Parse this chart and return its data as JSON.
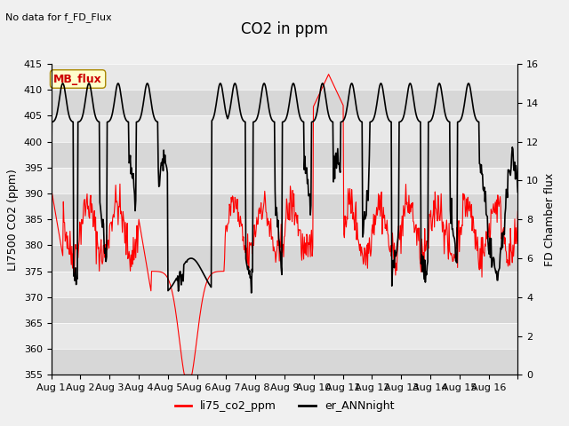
{
  "title": "CO2 in ppm",
  "top_left_text": "No data for f_FD_Flux",
  "ylabel_left": "LI7500 CO2 (ppm)",
  "ylabel_right": "FD Chamber flux",
  "ylim_left": [
    355,
    415
  ],
  "ylim_right": [
    0,
    16
  ],
  "yticks_left": [
    355,
    360,
    365,
    370,
    375,
    380,
    385,
    390,
    395,
    400,
    405,
    410,
    415
  ],
  "yticks_right": [
    0,
    2,
    4,
    6,
    8,
    10,
    12,
    14,
    16
  ],
  "xtick_labels": [
    "Aug 1",
    "Aug 2",
    "Aug 3",
    "Aug 4",
    "Aug 5",
    "Aug 6",
    "Aug 7",
    "Aug 8",
    "Aug 9",
    "Aug 10",
    "Aug 11",
    "Aug 12",
    "Aug 13",
    "Aug 14",
    "Aug 15",
    "Aug 16"
  ],
  "legend_labels": [
    "li75_co2_ppm",
    "er_ANNnight"
  ],
  "legend_colors": [
    "#ff0000",
    "#000000"
  ],
  "line_color_red": "#ff0000",
  "line_color_black": "#000000",
  "background_color": "#f0f0f0",
  "plot_bg_color": "#e8e8e8",
  "mb_flux_box_color": "#ffffcc",
  "mb_flux_text_color": "#cc0000",
  "title_fontsize": 12,
  "label_fontsize": 9,
  "tick_fontsize": 8
}
